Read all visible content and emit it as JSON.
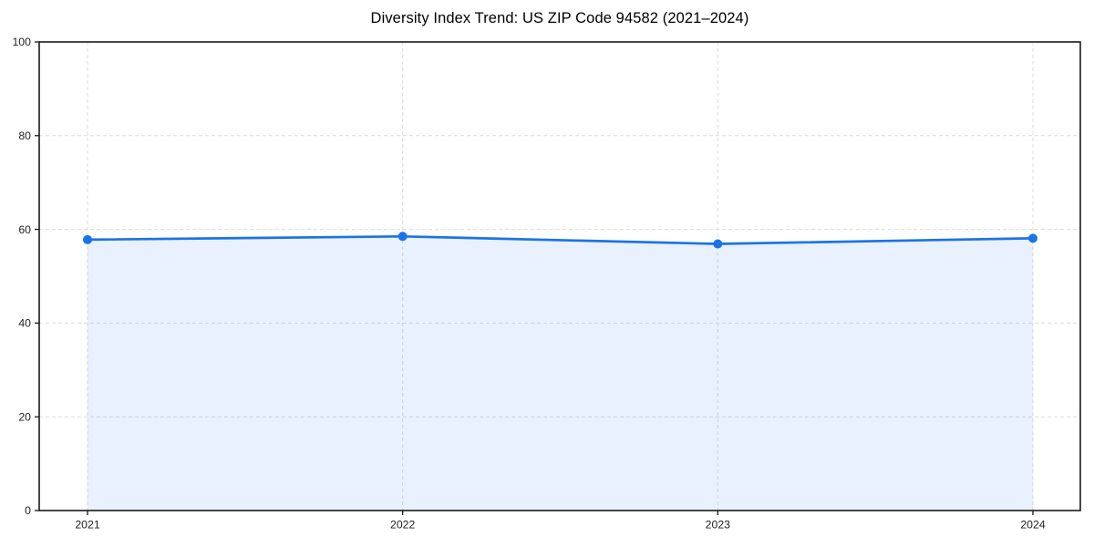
{
  "chart_data": {
    "type": "line",
    "title": "Diversity Index Trend: US ZIP Code 94582 (2021–2024)",
    "x": [
      "2021",
      "2022",
      "2023",
      "2024"
    ],
    "series": [
      {
        "name": "Diversity Index",
        "values": [
          57.8,
          58.5,
          56.9,
          58.1
        ],
        "color": "#1a73e8",
        "fill_color": "rgba(26,115,232,0.10)",
        "marker": "circle"
      }
    ],
    "xlabel": "",
    "ylabel": "",
    "ylim": [
      0,
      100
    ],
    "yticks": [
      0,
      20,
      40,
      60,
      80,
      100
    ],
    "grid": true,
    "grid_style": "dashed",
    "legend": null
  },
  "style": {
    "background": "#ffffff",
    "grid_color": "#dcdcdc",
    "axis_color": "#1a1a1a",
    "tick_label_color": "#1f1f1f",
    "title_color": "#000000"
  }
}
